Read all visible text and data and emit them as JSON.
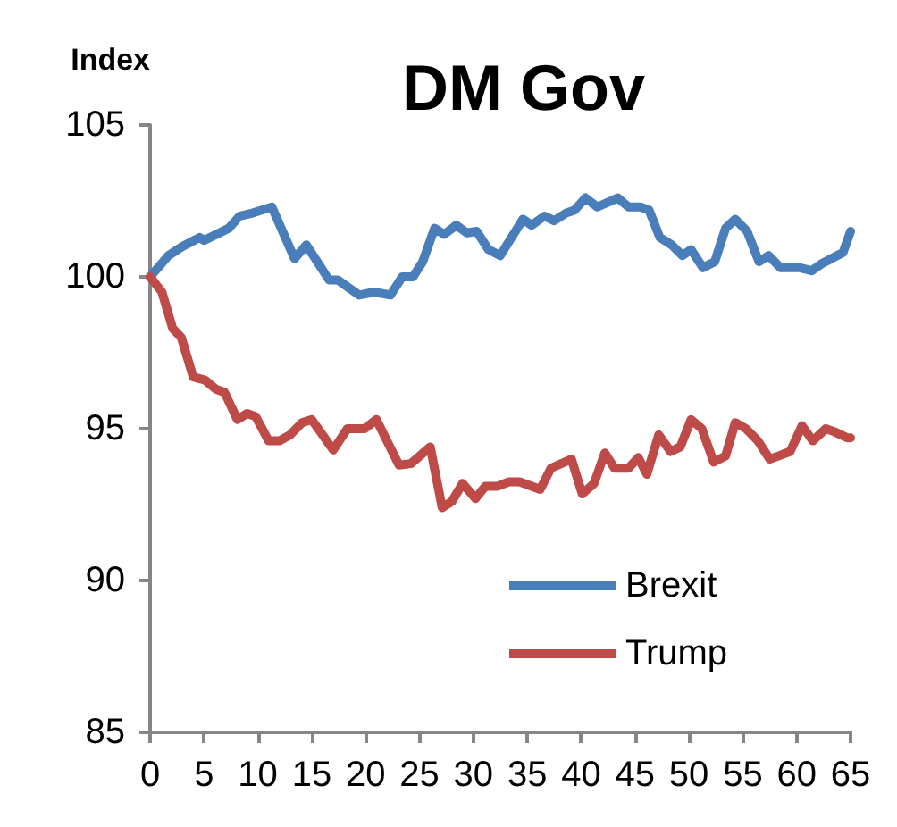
{
  "chart_data": {
    "type": "line",
    "title": "DM Gov",
    "ylabel": "Index",
    "xlim": [
      0,
      65
    ],
    "xticks": [
      0,
      5,
      10,
      15,
      20,
      25,
      30,
      35,
      40,
      45,
      50,
      55,
      60,
      65
    ],
    "ylim": [
      85,
      105
    ],
    "yticks": [
      85,
      90,
      95,
      100,
      105
    ],
    "grid": false,
    "legend": "bottom right",
    "marker": "none",
    "line_style": "solid",
    "series": [
      {
        "name": "Brexit",
        "color": "#4a7ebb",
        "x": [
          0,
          1.7,
          3,
          4.6,
          5,
          7.3,
          8.3,
          9.5,
          11.3,
          13.4,
          14.5,
          16.6,
          17.4,
          19.4,
          20.8,
          22.3,
          23.4,
          24.4,
          25.3,
          26.4,
          27.3,
          28.4,
          29.4,
          30.3,
          31.4,
          32.5,
          34.6,
          35.4,
          36.6,
          37.5,
          38.6,
          39.4,
          40.4,
          41.5,
          43.4,
          44.4,
          45.5,
          46.3,
          47.3,
          48.4,
          49.4,
          50.2,
          51.3,
          52.4,
          53.4,
          54.3,
          55.4,
          56.5,
          57.4,
          58.5,
          60.3,
          61.4,
          62.4,
          64.3,
          65
        ],
        "values": [
          100,
          100.7,
          101,
          101.3,
          101.2,
          101.6,
          102,
          102.1,
          102.3,
          100.6,
          101.05,
          99.9,
          99.9,
          99.4,
          99.5,
          99.4,
          100,
          100,
          100.5,
          101.6,
          101.4,
          101.7,
          101.45,
          101.5,
          100.9,
          100.7,
          101.9,
          101.7,
          102,
          101.85,
          102.1,
          102.2,
          102.6,
          102.3,
          102.6,
          102.3,
          102.3,
          102.2,
          101.3,
          101.05,
          100.7,
          100.9,
          100.3,
          100.5,
          101.6,
          101.9,
          101.5,
          100.5,
          100.7,
          100.3,
          100.3,
          100.2,
          100.45,
          100.8,
          101.5
        ]
      },
      {
        "name": "Trump",
        "color": "#be4b48",
        "x": [
          0,
          1.1,
          2.1,
          2.9,
          4,
          5.1,
          6.1,
          6.9,
          8.1,
          9,
          9.8,
          11,
          12,
          13,
          14.1,
          15,
          17,
          18.3,
          19.9,
          21,
          23.1,
          24.2,
          26,
          27.1,
          28,
          29,
          30.2,
          31.1,
          32.2,
          33.3,
          34.3,
          36.2,
          37.2,
          39.1,
          40.1,
          41.2,
          42.2,
          43.1,
          44.4,
          45.3,
          46.1,
          47.2,
          48.3,
          49.2,
          50.2,
          51.2,
          52.3,
          53.4,
          54.3,
          55.3,
          56.4,
          57.5,
          58.3,
          59.4,
          60.5,
          61.5,
          62.7,
          63.5,
          64.7,
          65
        ],
        "values": [
          100,
          99.5,
          98.3,
          98,
          96.7,
          96.6,
          96.3,
          96.2,
          95.3,
          95.5,
          95.4,
          94.6,
          94.6,
          94.8,
          95.2,
          95.3,
          94.3,
          95,
          95,
          95.3,
          93.8,
          93.85,
          94.4,
          92.4,
          92.6,
          93.2,
          92.7,
          93.1,
          93.1,
          93.25,
          93.25,
          93,
          93.7,
          94,
          92.85,
          93.2,
          94.2,
          93.7,
          93.7,
          94.05,
          93.5,
          94.8,
          94.25,
          94.4,
          95.3,
          95,
          93.9,
          94.1,
          95.2,
          95,
          94.6,
          94,
          94.1,
          94.25,
          95.1,
          94.6,
          95,
          94.9,
          94.7,
          94.7
        ]
      }
    ]
  }
}
